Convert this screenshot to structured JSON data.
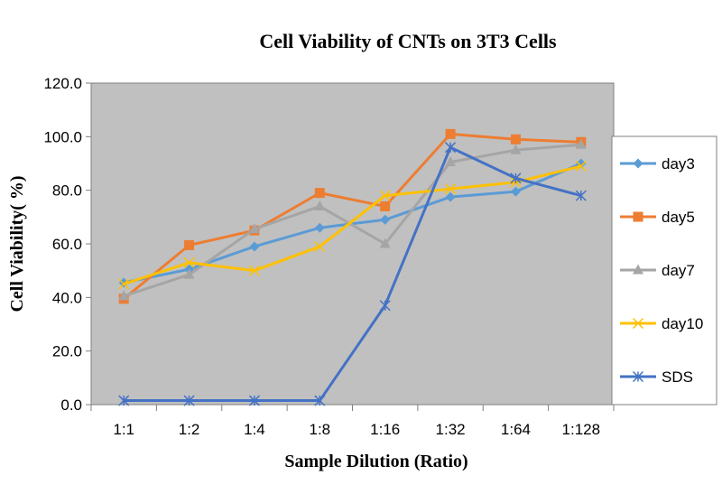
{
  "chart_data": {
    "type": "line",
    "title": "Cell Viability of CNTs on 3T3 Cells",
    "xlabel": "Sample Dilution (Ratio)",
    "ylabel": "Cell Viability( %)",
    "categories": [
      "1:1",
      "1:2",
      "1:4",
      "1:8",
      "1:16",
      "1:32",
      "1:64",
      "1:128"
    ],
    "ylim": [
      0,
      120
    ],
    "yticks": [
      "0.0",
      "20.0",
      "40.0",
      "60.0",
      "80.0",
      "100.0",
      "120.0"
    ],
    "grid": false,
    "plot_background": "#c0c0c0",
    "legend_position": "right",
    "series": [
      {
        "name": "day3",
        "color": "#5b9bd5",
        "marker": "diamond",
        "values": [
          45.5,
          50.5,
          59,
          66,
          69,
          77.5,
          79.5,
          90
        ]
      },
      {
        "name": "day5",
        "color": "#ed7d31",
        "marker": "square",
        "values": [
          39.5,
          59.5,
          65,
          79,
          74,
          101,
          99,
          98
        ]
      },
      {
        "name": "day7",
        "color": "#a5a5a5",
        "marker": "triangle",
        "values": [
          40.5,
          48.5,
          65.5,
          74,
          60,
          90.5,
          95,
          97
        ]
      },
      {
        "name": "day10",
        "color": "#ffc000",
        "marker": "x",
        "values": [
          45,
          53,
          50,
          59,
          78,
          80.5,
          83,
          89
        ]
      },
      {
        "name": "SDS",
        "color": "#4472c4",
        "marker": "star",
        "values": [
          1.5,
          1.5,
          1.5,
          1.5,
          37,
          96,
          84.5,
          78
        ]
      }
    ]
  }
}
